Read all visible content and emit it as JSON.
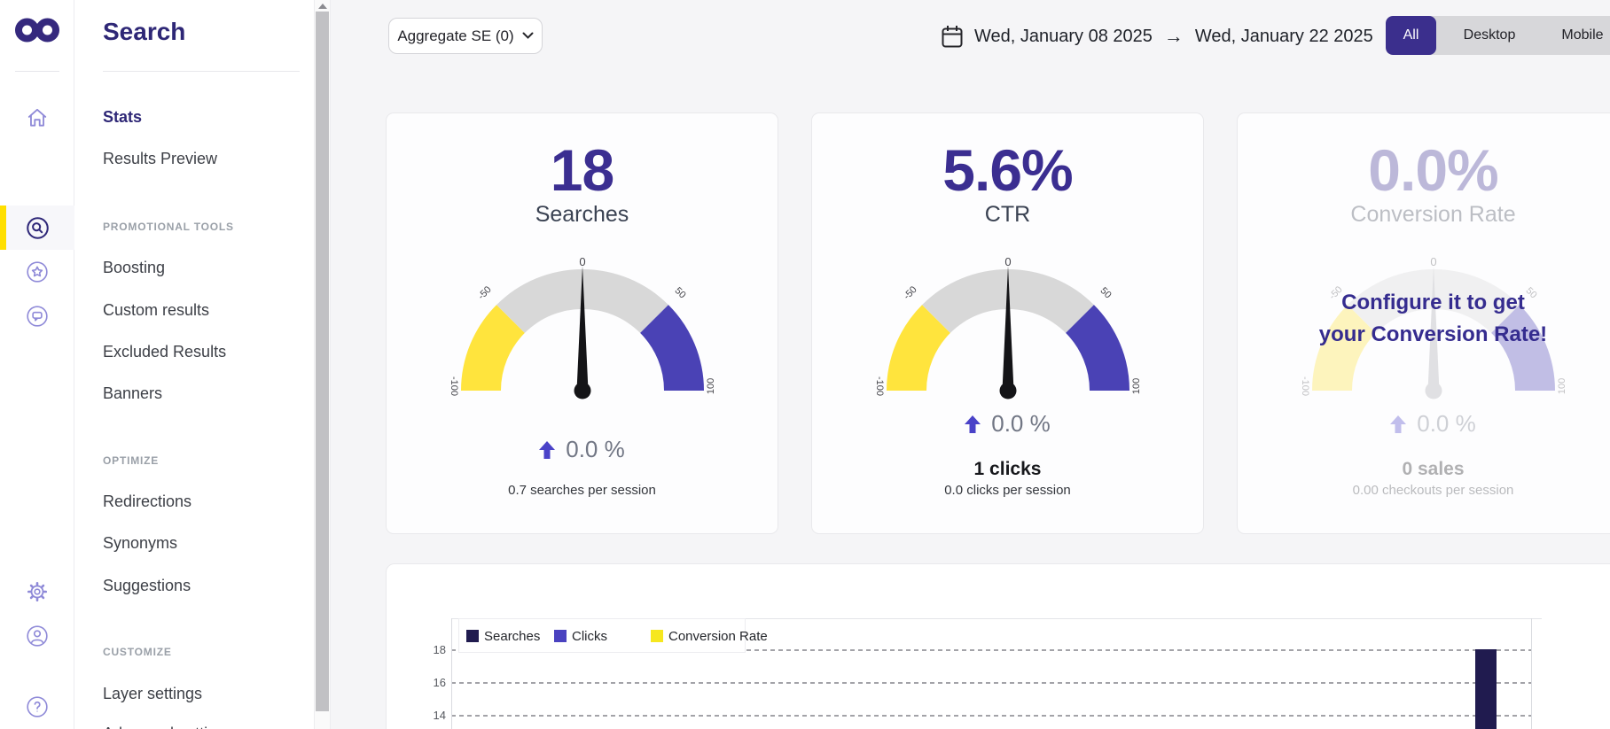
{
  "app": {
    "background": "#f5f5f7",
    "accent": "#3b2f8d",
    "accent_yellow": "#ffdf00"
  },
  "rail": {
    "logo": "infinity-logo",
    "logo_color": "#35297e",
    "icon_color": "#8f8ad8",
    "active_icon_color": "#2f2879",
    "icons": [
      "home-icon",
      "search-circle-icon",
      "star-circle-icon",
      "chat-circle-icon",
      "settings-gear-icon",
      "user-account-icon",
      "help-icon"
    ],
    "active_icon": "search-circle-icon"
  },
  "sidebar": {
    "title": "Search",
    "active_item": "Stats",
    "sections": [
      {
        "header": "",
        "items": [
          "Stats",
          "Results Preview"
        ]
      },
      {
        "header": "PROMOTIONAL TOOLS",
        "items": [
          "Boosting",
          "Custom results",
          "Excluded Results",
          "Banners"
        ]
      },
      {
        "header": "OPTIMIZE",
        "items": [
          "Redirections",
          "Synonyms",
          "Suggestions"
        ]
      },
      {
        "header": "CUSTOMIZE",
        "items": [
          "Layer settings",
          "Advanced settings"
        ]
      }
    ]
  },
  "topbar": {
    "se_selector_label": "Aggregate SE (0)",
    "date_from": "Wed, January 08 2025",
    "date_separator": "→",
    "date_to": "Wed, January 22 2025",
    "device_tabs": {
      "options": [
        "All",
        "Desktop",
        "Mobile"
      ],
      "active": "All"
    }
  },
  "cards": [
    {
      "value": "18",
      "label": "Searches",
      "delta": "0.0 %",
      "delta_direction": "up",
      "subtext": "0.7 searches per session",
      "disabled": false
    },
    {
      "value": "5.6%",
      "label": "CTR",
      "delta": "0.0 %",
      "delta_direction": "up",
      "highlight": "1 clicks",
      "subtext": "0.0 clicks per session",
      "disabled": false
    },
    {
      "value": "0.0%",
      "label": "Conversion Rate",
      "delta": "0.0 %",
      "delta_direction": "up",
      "highlight": "0 sales",
      "subtext": "0.00 checkouts per session",
      "disabled": true,
      "overlay_line1": "Configure it to get",
      "overlay_line2": "your Conversion Rate!"
    }
  ],
  "gauge": {
    "ticks": {
      "top": "0",
      "left_mid": "-50",
      "right_mid": "50",
      "left_end": "-100",
      "right_end": "100"
    },
    "segments": [
      {
        "from": -100,
        "to": -50,
        "color": "#ffe43d"
      },
      {
        "from": -50,
        "to": 50,
        "color": "#d8d8d8"
      },
      {
        "from": 50,
        "to": 100,
        "color": "#4a42b5"
      }
    ],
    "needle_value": 0,
    "needle_color": "#141417",
    "disabled_needle_color": "#a8a8ad",
    "tick_color": "#46464c"
  },
  "delta_arrow_color": "#4a42c8",
  "chart_data": {
    "type": "bar",
    "title": "",
    "legend": [
      {
        "name": "Searches",
        "color": "#201b4f"
      },
      {
        "name": "Clicks",
        "color": "#4a42c0"
      },
      {
        "name": "Conversion Rate",
        "color": "#f6e71f"
      }
    ],
    "legend_position": "top-left",
    "grid_style": "dashed",
    "yticks": [
      18,
      16,
      14
    ],
    "x_range": [
      "Wed, January 08 2025",
      "Wed, January 22 2025"
    ],
    "visible_bars": [
      {
        "series": "Searches",
        "value": 18,
        "slot": 14,
        "total_slots": 15
      }
    ],
    "clipped_bottom": true
  }
}
